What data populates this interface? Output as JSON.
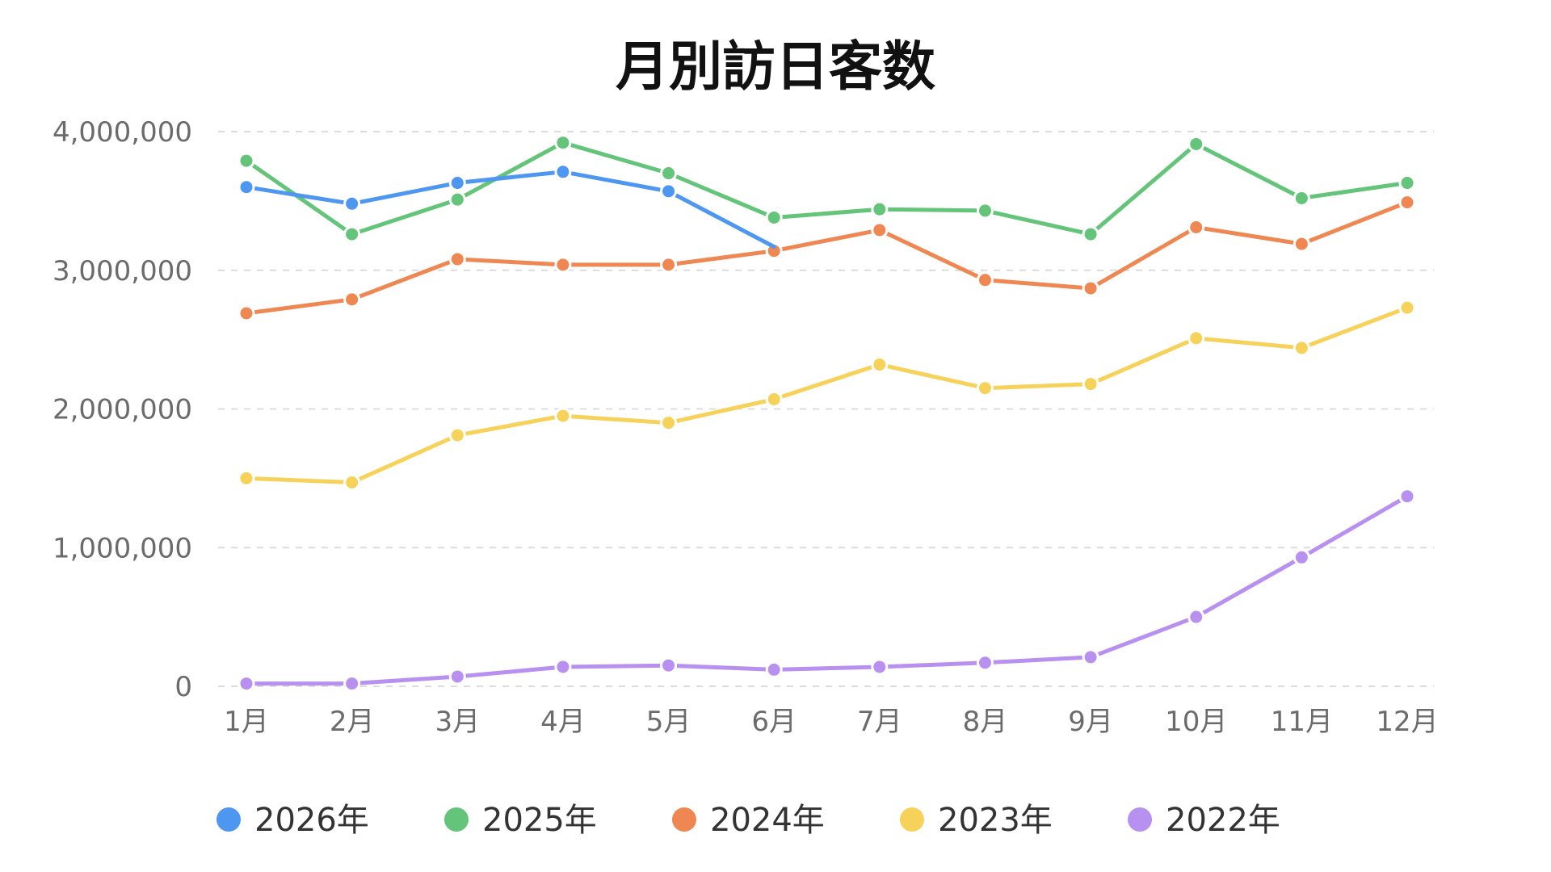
{
  "chart_data": {
    "type": "line",
    "title": "月別訪日客数",
    "xlabel": "",
    "ylabel": "",
    "categories": [
      "1月",
      "2月",
      "3月",
      "4月",
      "5月",
      "6月",
      "7月",
      "8月",
      "9月",
      "10月",
      "11月",
      "12月"
    ],
    "ylim": [
      0,
      4000000
    ],
    "yticks": [
      0,
      1000000,
      2000000,
      3000000,
      4000000
    ],
    "ytick_labels": [
      "0",
      "1,000,000",
      "2,000,000",
      "3,000,000",
      "4,000,000"
    ],
    "grid": true,
    "legend_position": "bottom",
    "series": [
      {
        "name": "2026年",
        "color": "#4e97f1",
        "values": [
          3600000,
          3480000,
          3630000,
          3710000,
          3570000,
          3170000,
          null,
          null,
          null,
          null,
          null,
          null
        ],
        "partial_last": true
      },
      {
        "name": "2025年",
        "color": "#63c47a",
        "values": [
          3790000,
          3260000,
          3510000,
          3920000,
          3700000,
          3380000,
          3440000,
          3430000,
          3260000,
          3910000,
          3520000,
          3630000
        ]
      },
      {
        "name": "2024年",
        "color": "#ef8752",
        "values": [
          2690000,
          2790000,
          3080000,
          3040000,
          3040000,
          3140000,
          3290000,
          2930000,
          2870000,
          3310000,
          3190000,
          3490000
        ]
      },
      {
        "name": "2023年",
        "color": "#f7d25b",
        "values": [
          1500000,
          1470000,
          1810000,
          1950000,
          1900000,
          2070000,
          2320000,
          2150000,
          2180000,
          2510000,
          2440000,
          2730000
        ]
      },
      {
        "name": "2022年",
        "color": "#b891f0",
        "values": [
          20000,
          20000,
          70000,
          140000,
          150000,
          120000,
          140000,
          170000,
          210000,
          500000,
          930000,
          1370000
        ]
      }
    ]
  }
}
